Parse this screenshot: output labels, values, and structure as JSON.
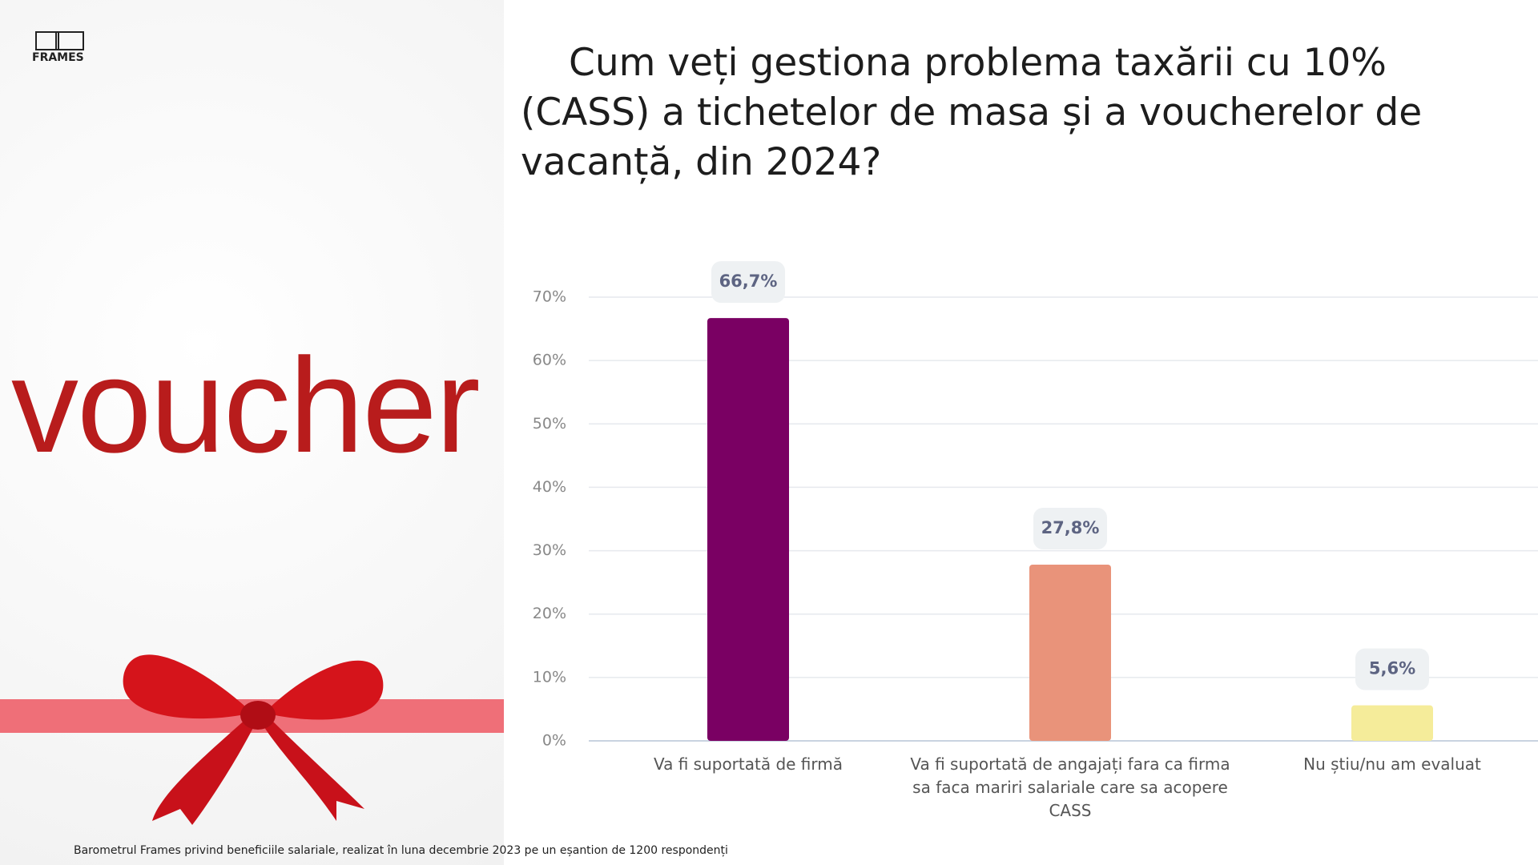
{
  "logo": "FRAMES",
  "voucher_text": "voucher",
  "footnote": "Barometrul Frames privind beneficiile salariale, realizat în luna decembrie 2023 pe un eșantion de 1200 respondenți",
  "chart_data": {
    "type": "bar",
    "title": "Cum veți gestiona problema taxării cu 10% (CASS) a tichetelor de masa și a voucherelor de vacanță, din 2024?",
    "categories": [
      "Va fi suportată de firmă",
      "Va fi suportată de angajați fara ca firma sa faca mariri salariale care sa acopere CASS",
      "Nu știu/nu am evaluat"
    ],
    "values": [
      66.7,
      27.8,
      5.6
    ],
    "value_labels": [
      "66,7%",
      "27,8%",
      "5,6%"
    ],
    "colors": [
      "#7a0063",
      "#e9937a",
      "#f5ec9a"
    ],
    "ylim": [
      0,
      70
    ],
    "yticks": [
      {
        "value": 0,
        "label": "0%"
      },
      {
        "value": 10,
        "label": "10%"
      },
      {
        "value": 20,
        "label": "20%"
      },
      {
        "value": 30,
        "label": "30%"
      },
      {
        "value": 40,
        "label": "40%"
      },
      {
        "value": 50,
        "label": "50%"
      },
      {
        "value": 60,
        "label": "60%"
      },
      {
        "value": 70,
        "label": "70%"
      }
    ],
    "grid": true
  }
}
